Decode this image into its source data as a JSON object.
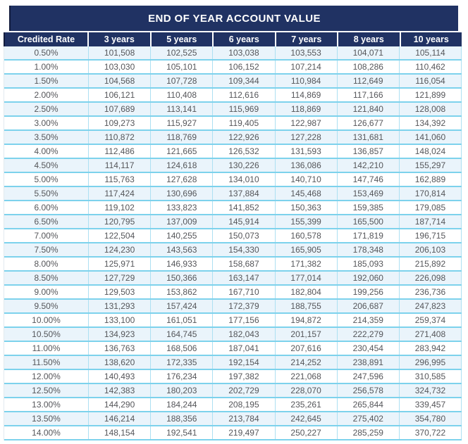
{
  "title": "END OF YEAR ACCOUNT VALUE",
  "table": {
    "columns": [
      "Credited Rate",
      "3 years",
      "5 years",
      "6 years",
      "7 years",
      "8 years",
      "10 years"
    ],
    "rows": [
      [
        "0.50%",
        "101,508",
        "102,525",
        "103,038",
        "103,553",
        "104,071",
        "105,114"
      ],
      [
        "1.00%",
        "103,030",
        "105,101",
        "106,152",
        "107,214",
        "108,286",
        "110,462"
      ],
      [
        "1.50%",
        "104,568",
        "107,728",
        "109,344",
        "110,984",
        "112,649",
        "116,054"
      ],
      [
        "2.00%",
        "106,121",
        "110,408",
        "112,616",
        "114,869",
        "117,166",
        "121,899"
      ],
      [
        "2.50%",
        "107,689",
        "113,141",
        "115,969",
        "118,869",
        "121,840",
        "128,008"
      ],
      [
        "3.00%",
        "109,273",
        "115,927",
        "119,405",
        "122,987",
        "126,677",
        "134,392"
      ],
      [
        "3.50%",
        "110,872",
        "118,769",
        "122,926",
        "127,228",
        "131,681",
        "141,060"
      ],
      [
        "4.00%",
        "112,486",
        "121,665",
        "126,532",
        "131,593",
        "136,857",
        "148,024"
      ],
      [
        "4.50%",
        "114,117",
        "124,618",
        "130,226",
        "136,086",
        "142,210",
        "155,297"
      ],
      [
        "5.00%",
        "115,763",
        "127,628",
        "134,010",
        "140,710",
        "147,746",
        "162,889"
      ],
      [
        "5.50%",
        "117,424",
        "130,696",
        "137,884",
        "145,468",
        "153,469",
        "170,814"
      ],
      [
        "6.00%",
        "119,102",
        "133,823",
        "141,852",
        "150,363",
        "159,385",
        "179,085"
      ],
      [
        "6.50%",
        "120,795",
        "137,009",
        "145,914",
        "155,399",
        "165,500",
        "187,714"
      ],
      [
        "7.00%",
        "122,504",
        "140,255",
        "150,073",
        "160,578",
        "171,819",
        "196,715"
      ],
      [
        "7.50%",
        "124,230",
        "143,563",
        "154,330",
        "165,905",
        "178,348",
        "206,103"
      ],
      [
        "8.00%",
        "125,971",
        "146,933",
        "158,687",
        "171,382",
        "185,093",
        "215,892"
      ],
      [
        "8.50%",
        "127,729",
        "150,366",
        "163,147",
        "177,014",
        "192,060",
        "226,098"
      ],
      [
        "9.00%",
        "129,503",
        "153,862",
        "167,710",
        "182,804",
        "199,256",
        "236,736"
      ],
      [
        "9.50%",
        "131,293",
        "157,424",
        "172,379",
        "188,755",
        "206,687",
        "247,823"
      ],
      [
        "10.00%",
        "133,100",
        "161,051",
        "177,156",
        "194,872",
        "214,359",
        "259,374"
      ],
      [
        "10.50%",
        "134,923",
        "164,745",
        "182,043",
        "201,157",
        "222,279",
        "271,408"
      ],
      [
        "11.00%",
        "136,763",
        "168,506",
        "187,041",
        "207,616",
        "230,454",
        "283,942"
      ],
      [
        "11.50%",
        "138,620",
        "172,335",
        "192,154",
        "214,252",
        "238,891",
        "296,995"
      ],
      [
        "12.00%",
        "140,493",
        "176,234",
        "197,382",
        "221,068",
        "247,596",
        "310,585"
      ],
      [
        "12.50%",
        "142,383",
        "180,203",
        "202,729",
        "228,070",
        "256,578",
        "324,732"
      ],
      [
        "13.00%",
        "144,290",
        "184,244",
        "208,195",
        "235,261",
        "265,844",
        "339,457"
      ],
      [
        "13.50%",
        "146,214",
        "188,356",
        "213,784",
        "242,645",
        "275,402",
        "354,780"
      ],
      [
        "14.00%",
        "148,154",
        "192,541",
        "219,497",
        "250,227",
        "285,259",
        "370,722"
      ]
    ]
  },
  "colors": {
    "navy": "#203263",
    "navy_edge": "#121c3d",
    "stripe": "#EAF4FB",
    "row_border": "#7DD2EC",
    "column_border": "#ADE0F2",
    "text_gray": "#55565A",
    "page_bg": "#FFFFFF"
  }
}
